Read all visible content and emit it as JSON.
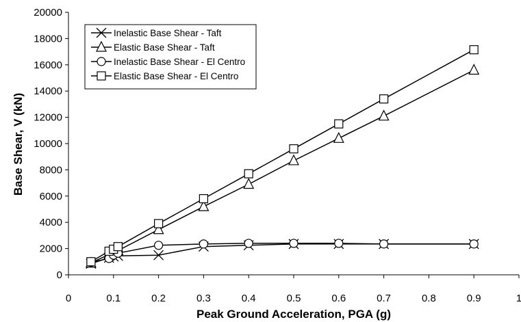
{
  "chart_data": {
    "type": "line",
    "xlabel": "Peak Ground Acceleration, PGA (g)",
    "ylabel": "Base Shear, V (kN)",
    "xlim": [
      0,
      1
    ],
    "ylim": [
      0,
      20000
    ],
    "x_ticks": [
      0,
      0.1,
      0.2,
      0.3,
      0.4,
      0.5,
      0.6,
      0.7,
      0.8,
      0.9,
      1
    ],
    "x_tick_labels": [
      "0",
      "0.1",
      "0.2",
      "0.3",
      "0.4",
      "0.5",
      "0.6",
      "0.7",
      "0.8",
      "0.9",
      "1"
    ],
    "y_ticks": [
      0,
      2000,
      4000,
      6000,
      8000,
      10000,
      12000,
      14000,
      16000,
      18000,
      20000
    ],
    "y_tick_labels": [
      "0",
      "2000",
      "4000",
      "6000",
      "8000",
      "10000",
      "12000",
      "14000",
      "16000",
      "18000",
      "20000"
    ],
    "grid": false,
    "legend_position": "top-left",
    "series": [
      {
        "name": "Inelastic Base Shear - Taft",
        "marker": "x",
        "x": [
          0.05,
          0.09,
          0.1,
          0.11,
          0.2,
          0.3,
          0.4,
          0.5,
          0.6,
          0.7,
          0.9
        ],
        "y": [
          850,
          1300,
          1400,
          1450,
          1500,
          2150,
          2250,
          2350,
          2350,
          2350,
          2350
        ]
      },
      {
        "name": "Elastic Base Shear - Taft",
        "marker": "triangle",
        "x": [
          0.05,
          0.09,
          0.1,
          0.11,
          0.2,
          0.3,
          0.4,
          0.5,
          0.6,
          0.7,
          0.9
        ],
        "y": [
          900,
          1550,
          1700,
          1850,
          3450,
          5200,
          6900,
          8700,
          10400,
          12100,
          15600
        ]
      },
      {
        "name": "Inelastic Base Shear - El Centro",
        "marker": "circle",
        "x": [
          0.05,
          0.09,
          0.1,
          0.11,
          0.2,
          0.3,
          0.4,
          0.5,
          0.6,
          0.7,
          0.9
        ],
        "y": [
          950,
          1250,
          1500,
          1650,
          2250,
          2350,
          2400,
          2400,
          2400,
          2350,
          2350
        ]
      },
      {
        "name": "Elastic Base Shear - El Centro",
        "marker": "square",
        "x": [
          0.05,
          0.09,
          0.1,
          0.11,
          0.2,
          0.3,
          0.4,
          0.5,
          0.6,
          0.7,
          0.9
        ],
        "y": [
          1000,
          1800,
          1950,
          2150,
          3900,
          5800,
          7700,
          9600,
          11500,
          13400,
          17150
        ]
      }
    ]
  }
}
